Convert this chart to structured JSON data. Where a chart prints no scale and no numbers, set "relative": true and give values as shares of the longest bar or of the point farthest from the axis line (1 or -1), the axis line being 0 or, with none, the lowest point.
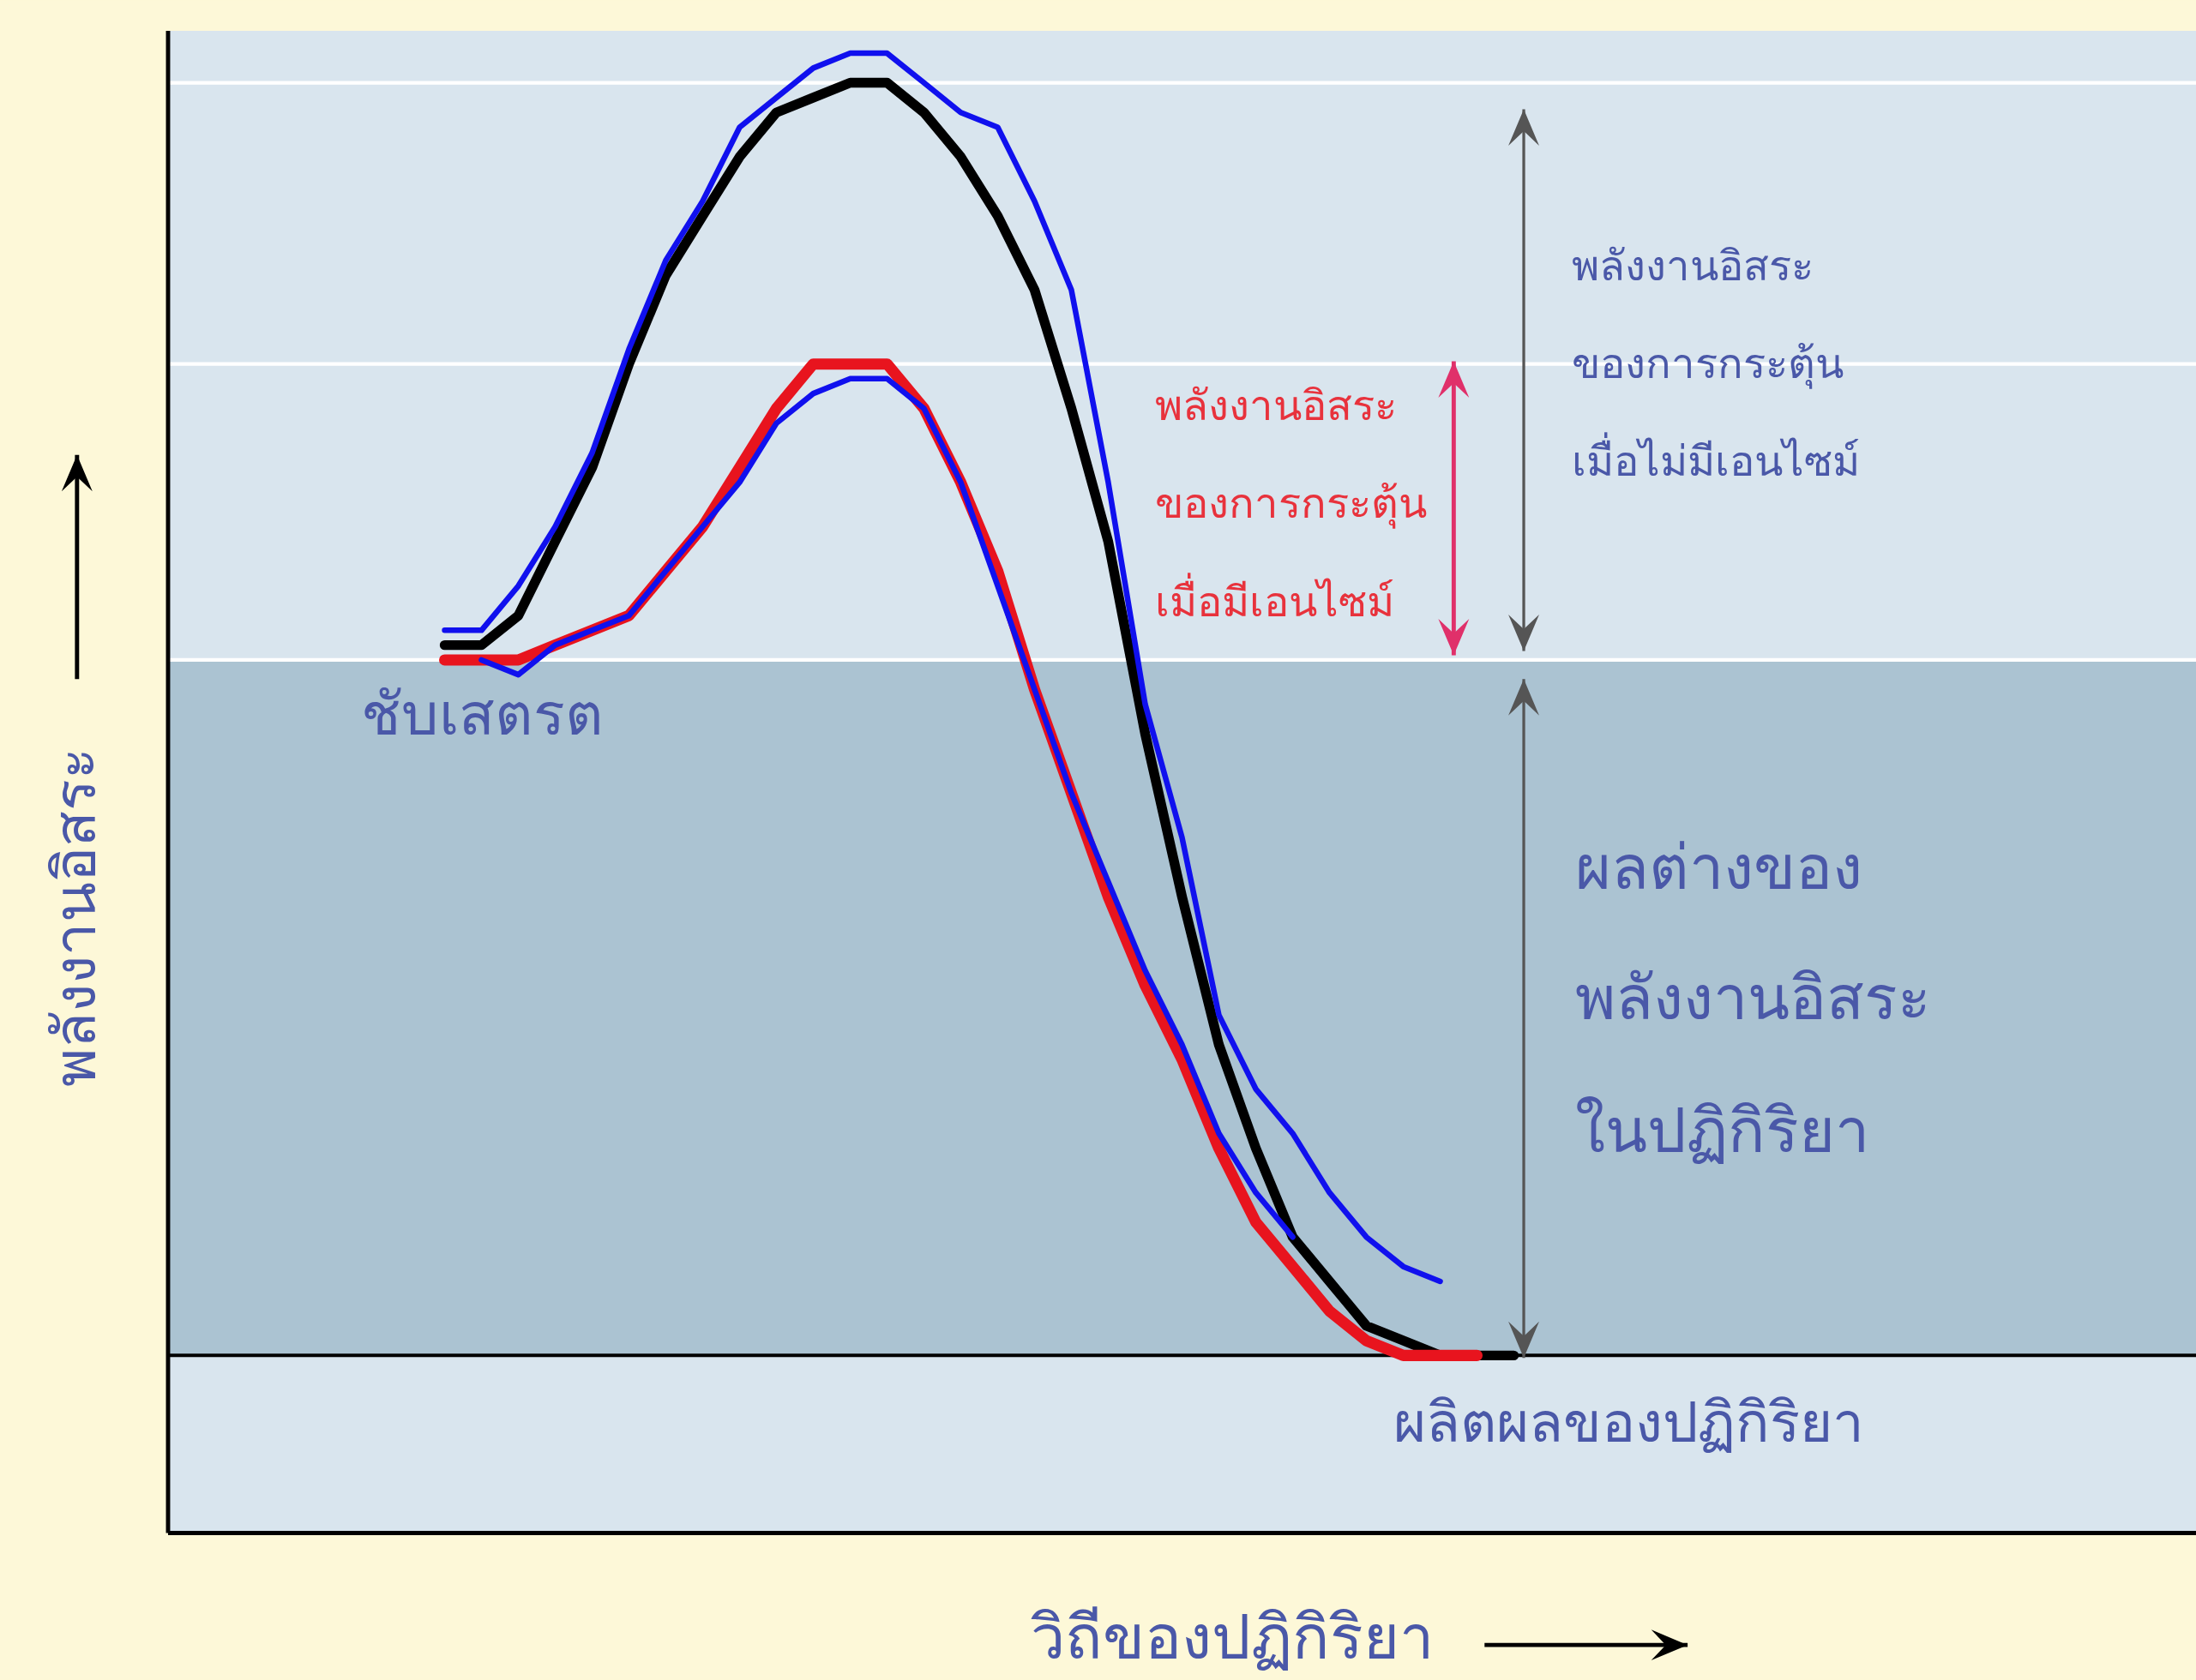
{
  "chart_data": {
    "type": "line",
    "relative": true,
    "xlabel": "วิถีของปฏิกิริยา",
    "ylabel": "พลังงานอิสระ",
    "line_style": "solid",
    "categories": [
      null,
      null,
      null,
      null,
      null,
      null,
      null,
      null,
      null,
      null,
      null,
      null,
      null,
      null,
      null,
      null,
      null,
      null,
      null,
      null,
      null,
      null,
      null,
      null,
      null,
      null,
      null,
      null,
      null,
      null,
      null,
      null,
      null,
      null,
      null,
      null,
      null,
      null,
      null,
      null,
      null,
      null,
      null,
      null,
      null,
      null,
      null,
      null,
      null,
      null,
      null,
      null,
      null,
      null,
      null
    ],
    "series": [
      {
        "color": "#000000",
        "values": [
          null,
          null,
          null,
          null,
          null,
          null,
          null,
          0.6,
          0.6,
          0.62,
          0.67,
          0.72,
          0.79,
          0.85,
          0.89,
          0.93,
          0.96,
          0.97,
          0.98,
          0.98,
          0.96,
          0.93,
          0.89,
          0.84,
          0.76,
          0.67,
          0.54,
          0.43,
          0.33,
          0.26,
          0.2,
          0.17,
          0.14,
          0.13,
          0.12,
          0.12,
          0.12,
          null,
          null,
          null,
          null,
          null,
          null,
          null,
          null,
          null,
          null,
          null,
          null,
          null,
          null,
          null,
          null,
          null,
          null
        ]
      },
      {
        "color": "#e8141e",
        "values": [
          null,
          null,
          null,
          null,
          null,
          null,
          null,
          0.59,
          0.59,
          0.59,
          0.6,
          0.61,
          0.62,
          0.65,
          0.68,
          0.72,
          0.76,
          0.79,
          0.79,
          0.79,
          0.76,
          0.71,
          0.65,
          0.57,
          0.5,
          0.43,
          0.37,
          0.32,
          0.26,
          0.21,
          0.18,
          0.15,
          0.13,
          0.12,
          0.12,
          0.12,
          null,
          null,
          null,
          null,
          null,
          null,
          null,
          null,
          null,
          null,
          null,
          null,
          null,
          null,
          null,
          null,
          null,
          null,
          null
        ]
      },
      {
        "color": "#1010ee",
        "values": [
          null,
          null,
          null,
          null,
          null,
          null,
          null,
          0.61,
          0.61,
          0.64,
          0.68,
          0.73,
          0.8,
          0.86,
          0.9,
          0.95,
          0.97,
          0.99,
          1.0,
          1.0,
          0.98,
          0.96,
          0.95,
          0.9,
          0.84,
          0.71,
          0.56,
          0.47,
          0.35,
          0.3,
          0.27,
          0.23,
          0.2,
          0.18,
          0.17,
          null,
          null,
          null,
          null,
          null,
          null,
          null,
          null,
          null,
          null,
          null,
          null,
          null,
          null,
          null,
          null,
          null,
          null,
          null,
          null
        ]
      },
      {
        "color": "#1010ee",
        "values": [
          null,
          null,
          null,
          null,
          null,
          null,
          null,
          null,
          0.59,
          0.58,
          0.6,
          0.61,
          0.62,
          0.65,
          0.68,
          0.71,
          0.75,
          0.77,
          0.78,
          0.78,
          0.76,
          0.71,
          0.64,
          0.57,
          0.5,
          0.44,
          0.38,
          0.33,
          0.27,
          0.23,
          0.2,
          null,
          null,
          null,
          null,
          null,
          null,
          null,
          null,
          null,
          null,
          null,
          null,
          null,
          null,
          null,
          null,
          null,
          null,
          null,
          null,
          null,
          null,
          null,
          null
        ]
      }
    ],
    "bands": [
      {
        "axis": "y",
        "from": 0.12,
        "to": 0.59,
        "color": "#abc3d2"
      }
    ],
    "ref_lines": [
      {
        "axis": "y",
        "value": 0.98,
        "color": "#ffffff"
      },
      {
        "axis": "y",
        "value": 0.79,
        "color": "#ffffff"
      },
      {
        "axis": "y",
        "value": 0.59,
        "color": "#ffffff"
      },
      {
        "axis": "y",
        "value": 0.12,
        "color": "#000000"
      }
    ],
    "annotations": [
      "ชับเสตรต",
      "ผลิตผลของปฏิกิริยา",
      "พลังงานอิสระ",
      "ของการกระตุ้น",
      "เมื่อมีเอนไซม์",
      "พลังงานอิสระ",
      "ของการกระตุ้น",
      "เมื่อไม่มีเอนไซม์",
      "ผลต่างของ",
      "พลังงานอิสระ",
      "ในปฏิกิริยา"
    ]
  }
}
